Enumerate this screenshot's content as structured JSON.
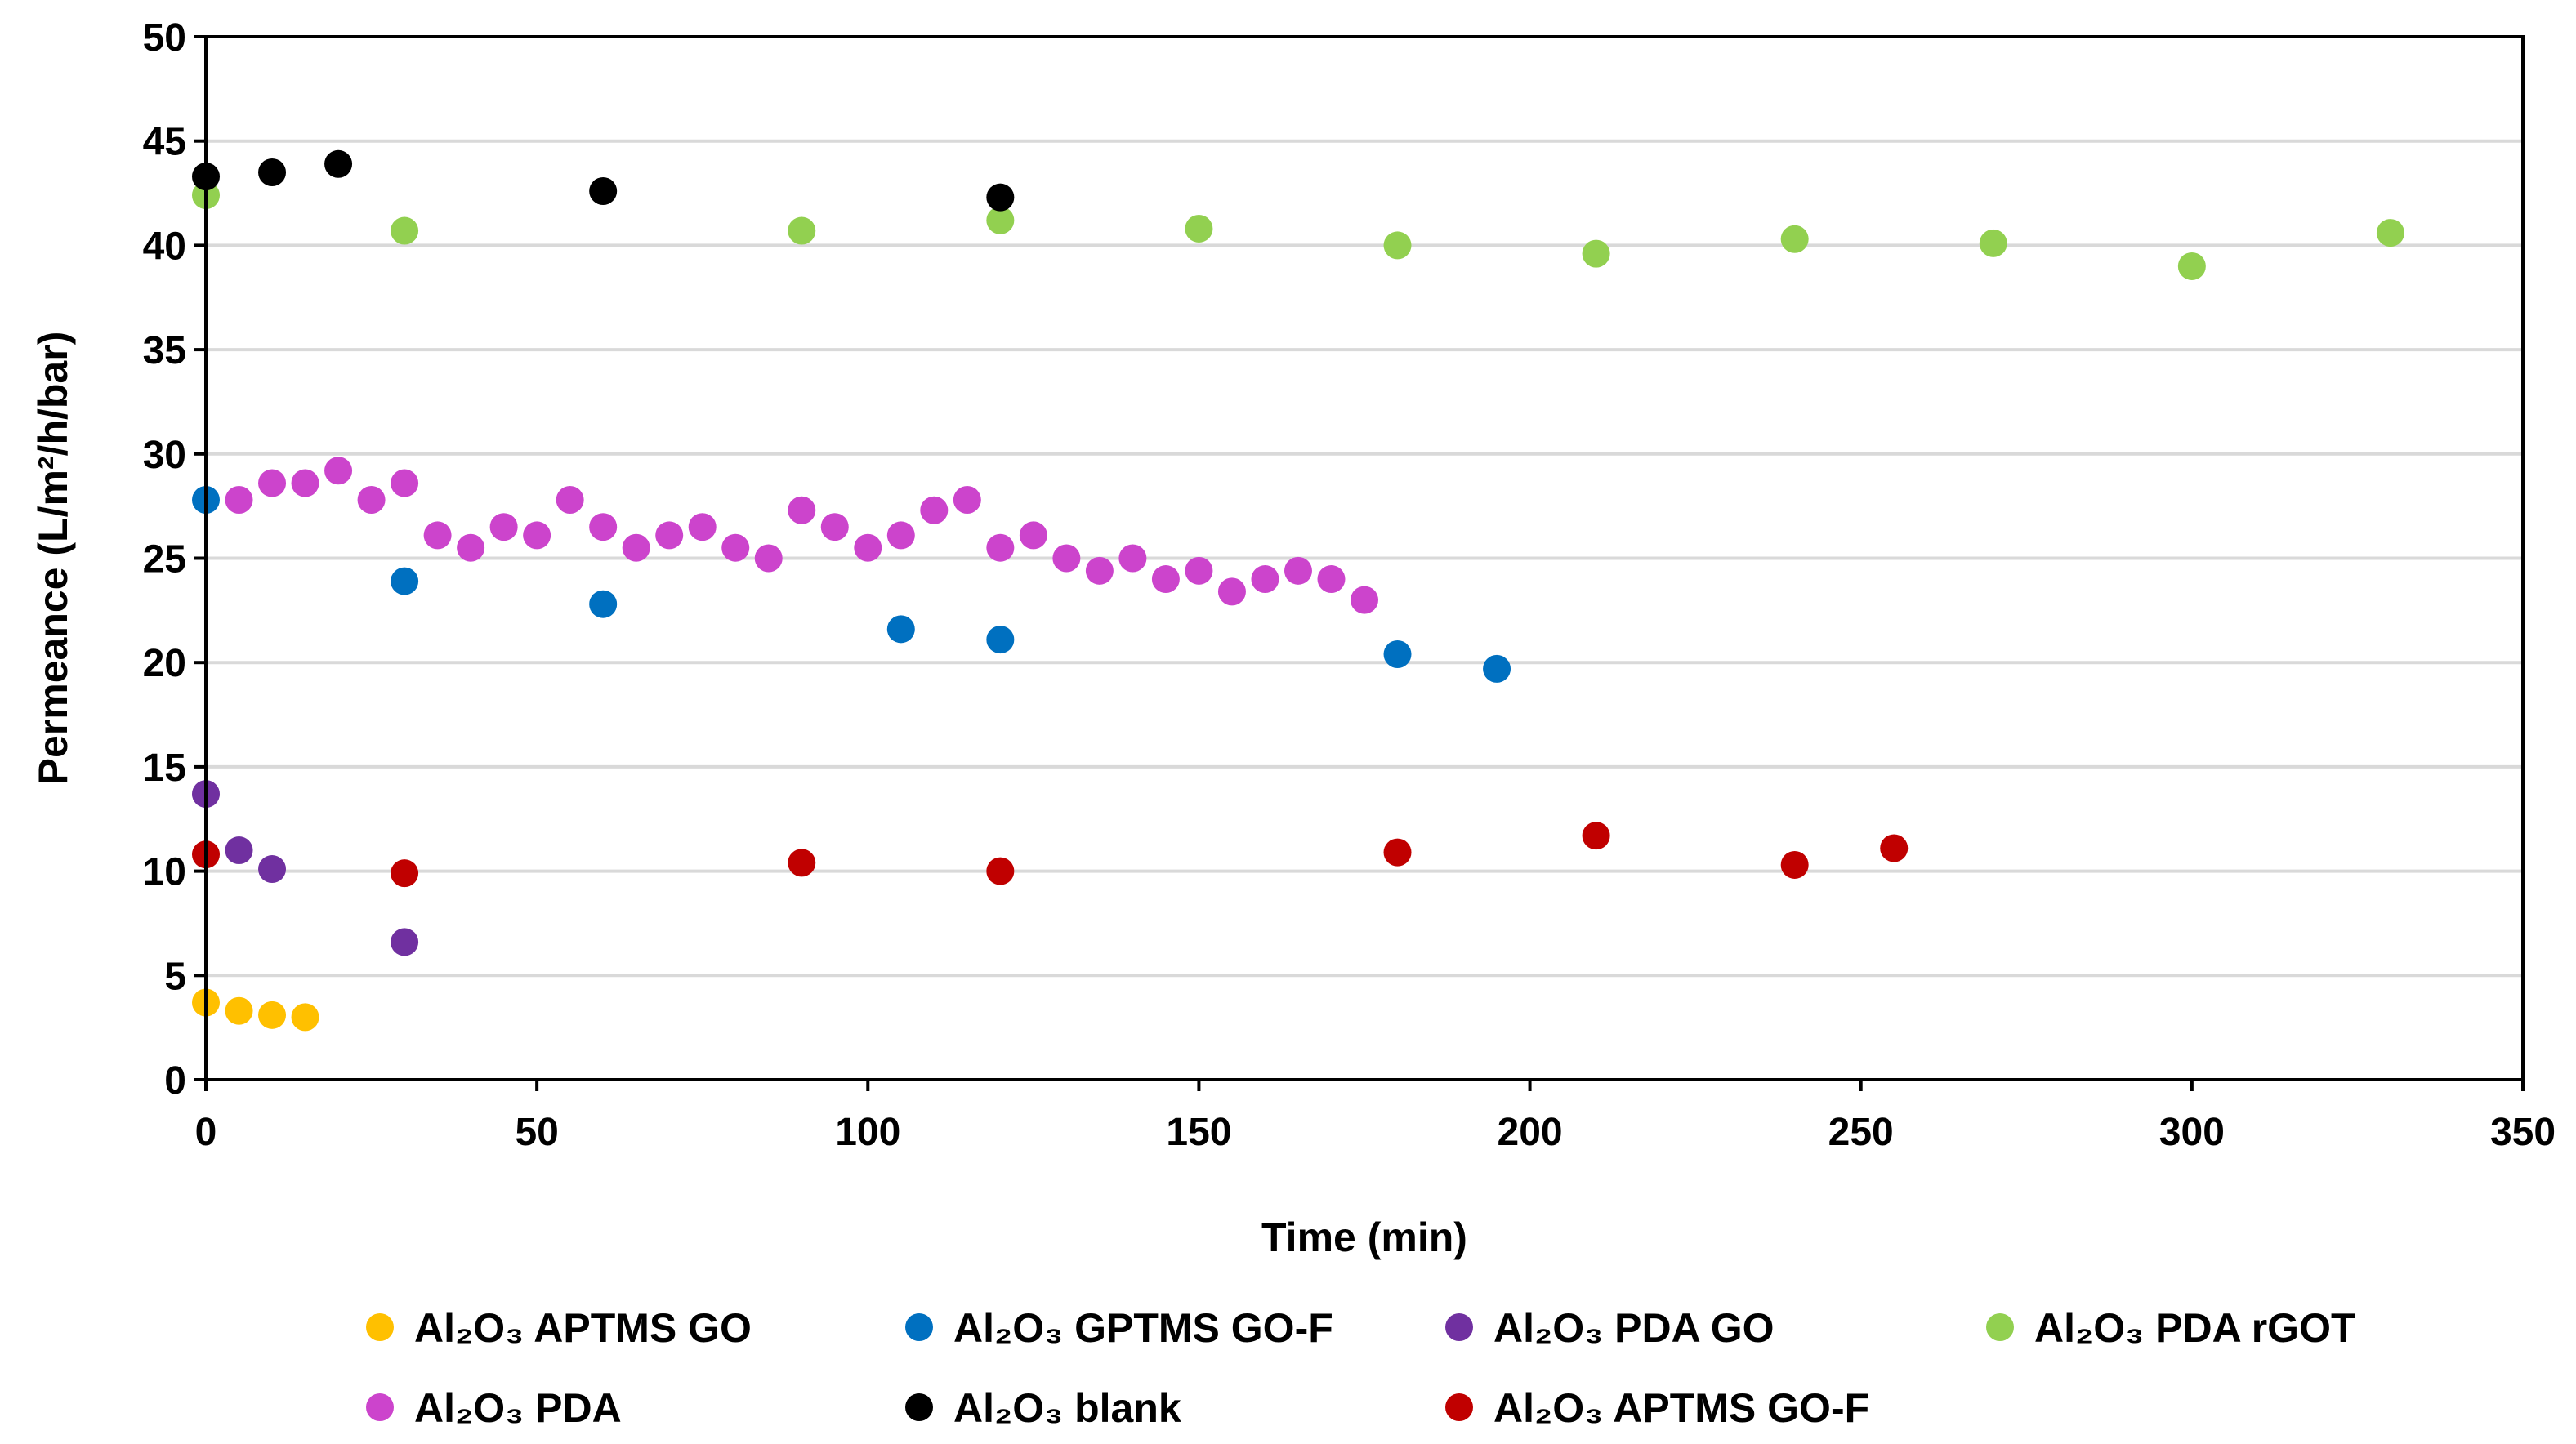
{
  "chart_data": {
    "type": "scatter",
    "title": "",
    "xlabel": "Time (min)",
    "ylabel": "Permeance (L/m²/h/bar)",
    "xlim": [
      0,
      350
    ],
    "ylim": [
      0,
      50
    ],
    "xticks": [
      0,
      50,
      100,
      150,
      200,
      250,
      300,
      350
    ],
    "yticks": [
      0,
      5,
      10,
      15,
      20,
      25,
      30,
      35,
      40,
      45,
      50
    ],
    "grid": "horizontal",
    "legend_position": "bottom",
    "series": [
      {
        "name": "Al₂O₃ APTMS GO",
        "color": "#ffc000",
        "points": [
          [
            0,
            3.7
          ],
          [
            5,
            3.3
          ],
          [
            10,
            3.1
          ],
          [
            15,
            3.0
          ]
        ]
      },
      {
        "name": "Al₂O₃ GPTMS GO-F",
        "color": "#0070c0",
        "points": [
          [
            0,
            27.8
          ],
          [
            30,
            23.9
          ],
          [
            60,
            22.8
          ],
          [
            105,
            21.6
          ],
          [
            120,
            21.1
          ],
          [
            180,
            20.4
          ],
          [
            195,
            19.7
          ]
        ]
      },
      {
        "name": "Al₂O₃ PDA GO",
        "color": "#7030a0",
        "points": [
          [
            0,
            13.7
          ],
          [
            5,
            11.0
          ],
          [
            10,
            10.1
          ],
          [
            30,
            6.6
          ]
        ]
      },
      {
        "name": "Al₂O₃ PDA rGOT",
        "color": "#92d050",
        "points": [
          [
            0,
            42.4
          ],
          [
            30,
            40.7
          ],
          [
            90,
            40.7
          ],
          [
            120,
            41.2
          ],
          [
            150,
            40.8
          ],
          [
            180,
            40.0
          ],
          [
            210,
            39.6
          ],
          [
            240,
            40.3
          ],
          [
            270,
            40.1
          ],
          [
            300,
            39.0
          ],
          [
            330,
            40.6
          ]
        ]
      },
      {
        "name": "Al₂O₃ PDA",
        "color": "#cc44cc",
        "points": [
          [
            5,
            27.8
          ],
          [
            10,
            28.6
          ],
          [
            15,
            28.6
          ],
          [
            20,
            29.2
          ],
          [
            25,
            27.8
          ],
          [
            30,
            28.6
          ],
          [
            35,
            26.1
          ],
          [
            40,
            25.5
          ],
          [
            45,
            26.5
          ],
          [
            50,
            26.1
          ],
          [
            55,
            27.8
          ],
          [
            60,
            26.5
          ],
          [
            65,
            25.5
          ],
          [
            70,
            26.1
          ],
          [
            75,
            26.5
          ],
          [
            80,
            25.5
          ],
          [
            85,
            25.0
          ],
          [
            90,
            27.3
          ],
          [
            95,
            26.5
          ],
          [
            100,
            25.5
          ],
          [
            105,
            26.1
          ],
          [
            110,
            27.3
          ],
          [
            115,
            27.8
          ],
          [
            120,
            25.5
          ],
          [
            125,
            26.1
          ],
          [
            130,
            25.0
          ],
          [
            135,
            24.4
          ],
          [
            140,
            25.0
          ],
          [
            145,
            24.0
          ],
          [
            150,
            24.4
          ],
          [
            155,
            23.4
          ],
          [
            160,
            24.0
          ],
          [
            165,
            24.4
          ],
          [
            170,
            24.0
          ],
          [
            175,
            23.0
          ]
        ]
      },
      {
        "name": "Al₂O₃ blank",
        "color": "#000000",
        "points": [
          [
            0,
            43.3
          ],
          [
            10,
            43.5
          ],
          [
            20,
            43.9
          ],
          [
            60,
            42.6
          ],
          [
            120,
            42.3
          ]
        ]
      },
      {
        "name": "Al₂O₃ APTMS GO-F",
        "color": "#c00000",
        "points": [
          [
            0,
            10.8
          ],
          [
            30,
            9.9
          ],
          [
            90,
            10.4
          ],
          [
            120,
            10.0
          ],
          [
            180,
            10.9
          ],
          [
            210,
            11.7
          ],
          [
            240,
            10.3
          ],
          [
            255,
            11.1
          ]
        ]
      }
    ]
  }
}
